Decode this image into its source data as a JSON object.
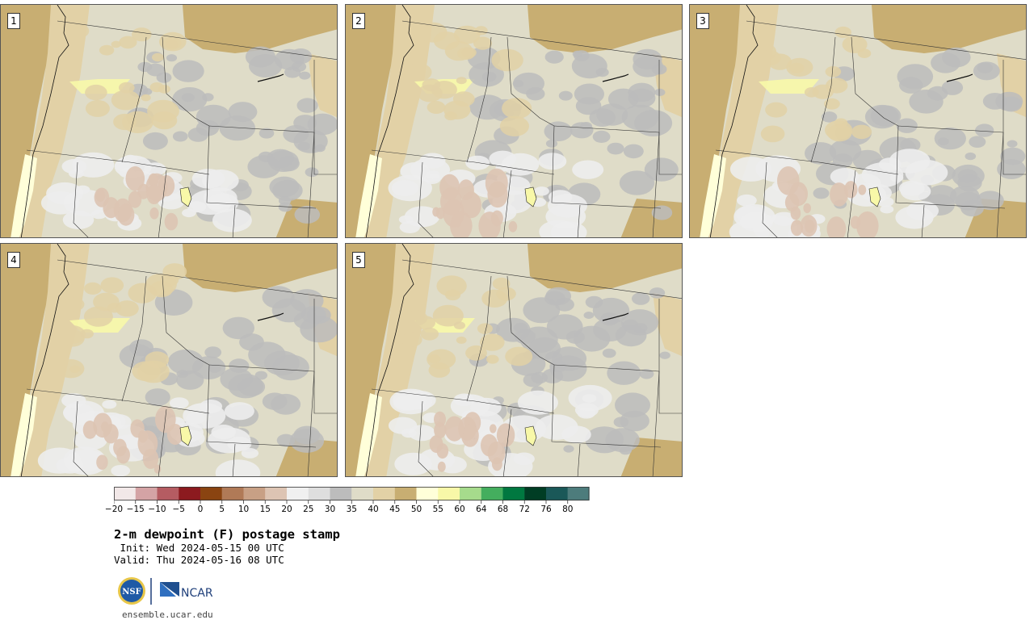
{
  "panels": [
    {
      "label": "1"
    },
    {
      "label": "2"
    },
    {
      "label": "3"
    },
    {
      "label": "4"
    },
    {
      "label": "5"
    }
  ],
  "colorbar": {
    "colors": [
      "#f2e8e8",
      "#d4a3a5",
      "#b55c62",
      "#8c1a1f",
      "#8a4411",
      "#b07a57",
      "#c8a085",
      "#ddc4b3",
      "#f0f0f0",
      "#dedede",
      "#bcbcbc",
      "#dfdcc8",
      "#e2d1a6",
      "#c8ae72",
      "#ffffd9",
      "#f8f8a8",
      "#a6db8c",
      "#44ae5e",
      "#007840",
      "#003d24",
      "#1a5858",
      "#4d7c7c"
    ],
    "tick_labels": [
      "−20",
      "−15",
      "−10",
      "−5",
      "0",
      "5",
      "10",
      "15",
      "20",
      "25",
      "30",
      "35",
      "40",
      "45",
      "50",
      "55",
      "60",
      "64",
      "68",
      "72",
      "76",
      "80"
    ]
  },
  "title": "2-m dewpoint (F) postage stamp",
  "init": " Init: Wed 2024-05-15 00 UTC",
  "valid": "Valid: Thu 2024-05-16 08 UTC",
  "logos": {
    "nsf": "NSF",
    "ncar": "NCAR"
  },
  "footer": "ensemble.ucar.edu"
}
